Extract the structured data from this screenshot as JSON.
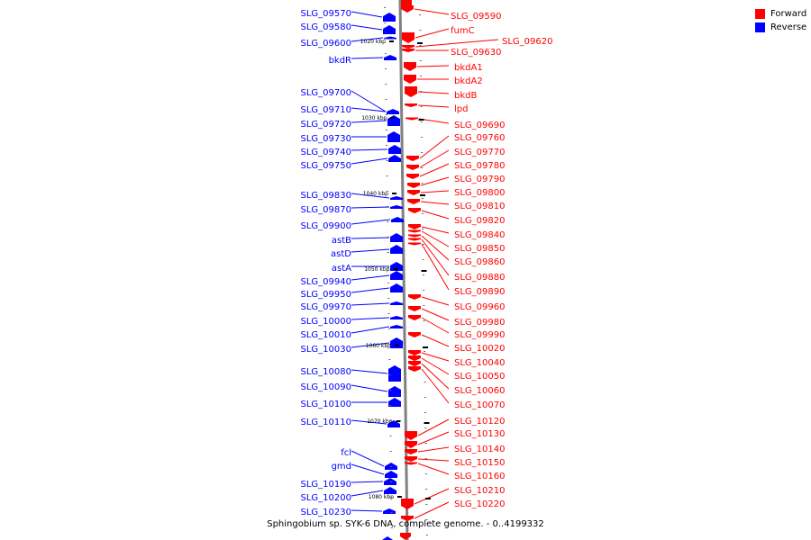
{
  "colors": {
    "forward": "#ff0000",
    "reverse": "#0000ff",
    "backbone": "#808080",
    "text": "#000000"
  },
  "legend": [
    {
      "label": "Forward",
      "color": "#ff0000"
    },
    {
      "label": "Reverse",
      "color": "#0000ff"
    }
  ],
  "caption": "Sphingobium sp. SYK-6 DNA, complete genome. - 0..4199332",
  "ticks": [
    "1020 kbp",
    "1030 kbp",
    "1040 kbp",
    "1050 kbp",
    "1060 kbp",
    "1070 kbp",
    "1080 kbp"
  ],
  "reverse_genes": [
    "SLG_09570",
    "SLG_09580",
    "SLG_09600",
    "bkdR",
    "SLG_09700",
    "SLG_09710",
    "SLG_09720",
    "SLG_09730",
    "SLG_09740",
    "SLG_09750",
    "SLG_09830",
    "SLG_09870",
    "SLG_09900",
    "astB",
    "astD",
    "astA",
    "SLG_09940",
    "SLG_09950",
    "SLG_09970",
    "SLG_10000",
    "SLG_10010",
    "SLG_10030",
    "SLG_10080",
    "SLG_10090",
    "SLG_10100",
    "SLG_10110",
    "fcl",
    "gmd",
    "SLG_10190",
    "SLG_10200",
    "SLG_10230"
  ],
  "forward_genes": [
    "SLG_09590",
    "fumC",
    "SLG_09620",
    "SLG_09630",
    "bkdA1",
    "bkdA2",
    "bkdB",
    "lpd",
    "SLG_09690",
    "SLG_09760",
    "SLG_09770",
    "SLG_09780",
    "SLG_09790",
    "SLG_09800",
    "SLG_09810",
    "SLG_09820",
    "SLG_09840",
    "SLG_09850",
    "SLG_09860",
    "SLG_09880",
    "SLG_09890",
    "SLG_09960",
    "SLG_09980",
    "SLG_09990",
    "SLG_10020",
    "SLG_10040",
    "SLG_10050",
    "SLG_10060",
    "SLG_10070",
    "SLG_10120",
    "SLG_10130",
    "SLG_10140",
    "SLG_10150",
    "SLG_10160",
    "SLG_10210",
    "SLG_10220"
  ]
}
